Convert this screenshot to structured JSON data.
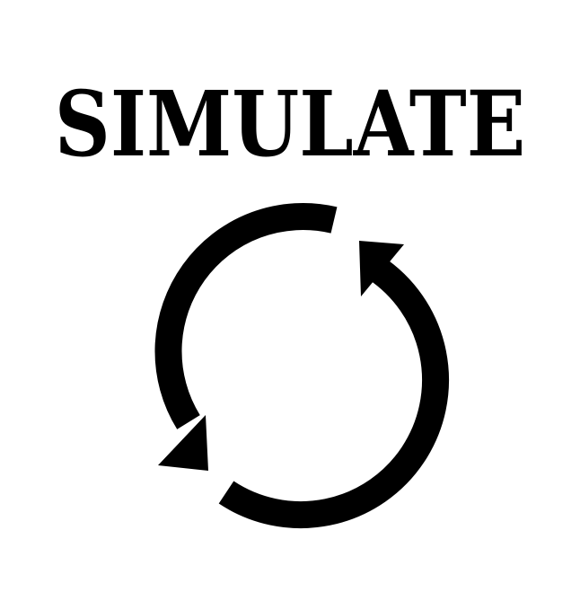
{
  "title": "SIMULATE",
  "icon": {
    "name": "cycle-arrows-icon",
    "color": "#000000"
  },
  "background": "#ffffff"
}
